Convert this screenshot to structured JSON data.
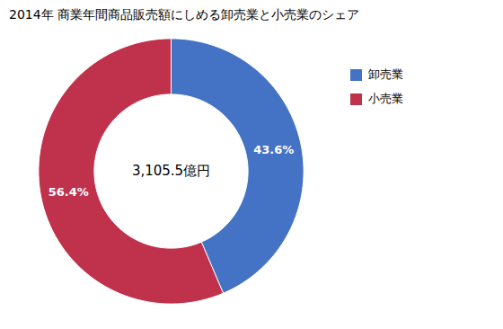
{
  "chart_data": {
    "type": "pie",
    "title": "2014年 商業年間商品販売額にしめる卸売業と小売業のシェア",
    "categories": [
      "卸売業",
      "小売業"
    ],
    "values": [
      43.6,
      56.4
    ],
    "value_labels": [
      "43.6%",
      "56.4%"
    ],
    "colors": [
      "#4472C4",
      "#C0314B"
    ],
    "data_labels": true,
    "annotations": [
      "3,105.5億円"
    ],
    "legend": "right"
  }
}
